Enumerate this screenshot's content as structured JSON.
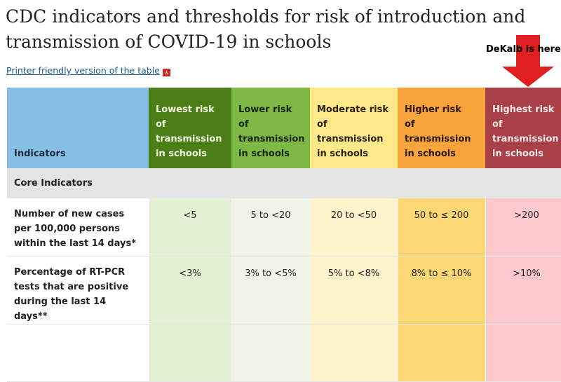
{
  "title": "CDC indicators and thresholds for risk of introduction and transmission of COVID-19 in schools",
  "printer_link": "Printer friendly version of the table",
  "pdf_icon": "PDF",
  "annotation": "DeKalb is here",
  "colors": {
    "lowest": "#4b7e16",
    "lower": "#7db944",
    "moderate": "#fde98a",
    "higher": "#f9a33c",
    "highest": "#a94048",
    "arrow": "#e02020"
  },
  "table": {
    "header": {
      "indicators": "Indicators",
      "levels": [
        [
          "Lowest risk",
          "of",
          "transmission",
          "in schools"
        ],
        [
          "Lower risk",
          "of",
          "transmission",
          "in schools"
        ],
        [
          "Moderate risk",
          "of",
          "transmission",
          "in schools"
        ],
        [
          "Higher risk",
          "of",
          "transmission",
          "in schools"
        ],
        [
          "Highest risk",
          "of",
          "transmission",
          "in schools"
        ]
      ]
    },
    "section": "Core Indicators",
    "rows": [
      {
        "indicator": "Number of new cases per 100,000 persons within the last 14 days*",
        "values": [
          "<5",
          "5 to <20",
          "20 to <50",
          "50 to ≤ 200",
          ">200"
        ]
      },
      {
        "indicator": "Percentage of RT-PCR tests that are positive during the last 14 days**",
        "values": [
          "<3%",
          "3% to <5%",
          "5% to <8%",
          "8% to ≤ 10%",
          ">10%"
        ]
      }
    ]
  }
}
